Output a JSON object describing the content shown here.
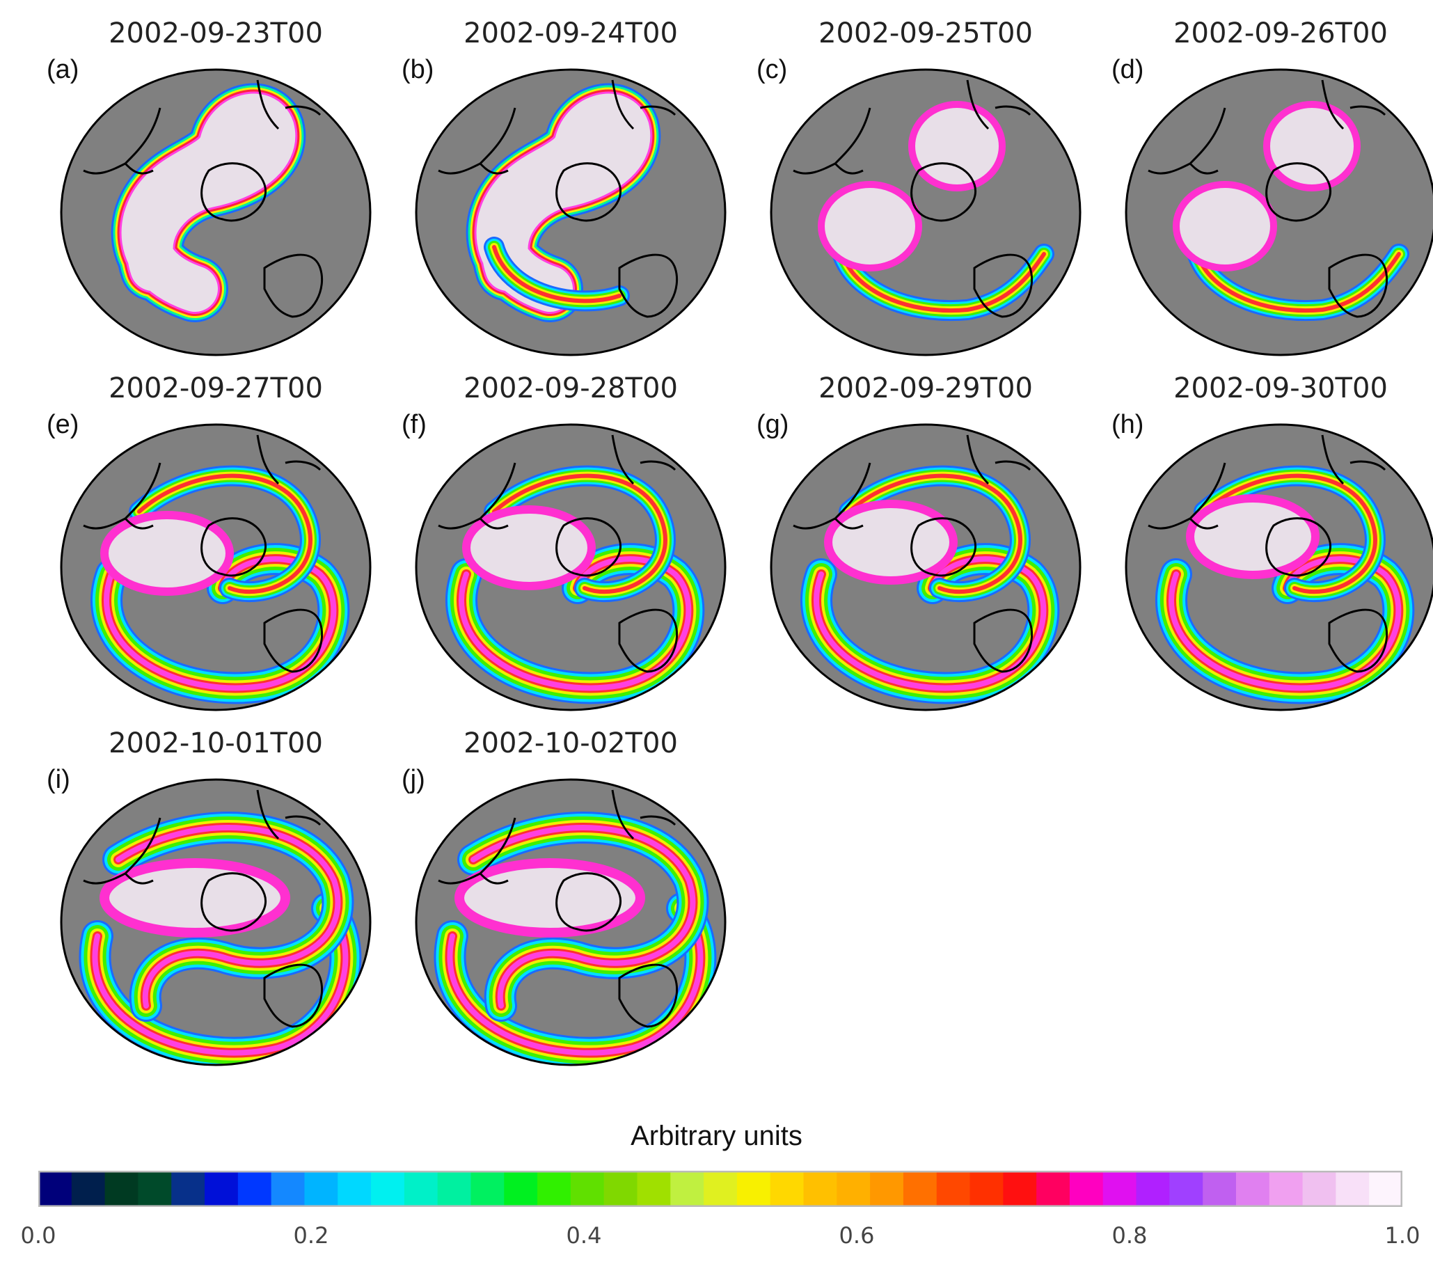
{
  "panels": [
    {
      "label": "(a)",
      "title": "2002-09-23T00"
    },
    {
      "label": "(b)",
      "title": "2002-09-24T00"
    },
    {
      "label": "(c)",
      "title": "2002-09-25T00"
    },
    {
      "label": "(d)",
      "title": "2002-09-26T00"
    },
    {
      "label": "(e)",
      "title": "2002-09-27T00"
    },
    {
      "label": "(f)",
      "title": "2002-09-28T00"
    },
    {
      "label": "(g)",
      "title": "2002-09-29T00"
    },
    {
      "label": "(h)",
      "title": "2002-09-30T00"
    },
    {
      "label": "(i)",
      "title": "2002-10-01T00"
    },
    {
      "label": "(j)",
      "title": "2002-10-02T00"
    }
  ],
  "colorbar": {
    "title": "Arbitrary units",
    "ticks": [
      "0.0",
      "0.2",
      "0.4",
      "0.6",
      "0.8",
      "1.0"
    ],
    "range": [
      0.0,
      1.0
    ],
    "colors": [
      "#00007a",
      "#001f4d",
      "#003a22",
      "#004a2a",
      "#07308a",
      "#0010d8",
      "#0038ff",
      "#1488ff",
      "#00b4ff",
      "#00d8ff",
      "#00f0f0",
      "#00f0c8",
      "#00f0a0",
      "#00f060",
      "#00f020",
      "#30f000",
      "#60e000",
      "#80d800",
      "#a0e000",
      "#c0f040",
      "#e0f020",
      "#f8f000",
      "#ffd800",
      "#ffc000",
      "#ffb000",
      "#ff9800",
      "#ff7000",
      "#ff4800",
      "#ff3000",
      "#ff1010",
      "#ff0060",
      "#ff00c0",
      "#e010f0",
      "#b020ff",
      "#a040ff",
      "#c060f0",
      "#e080f0",
      "#f0a0f0",
      "#f0c0f0",
      "#f8e0f8",
      "#fdf4fd"
    ]
  },
  "map_colors": {
    "background": "#808080",
    "vortex_core": "#e8dfe8"
  }
}
